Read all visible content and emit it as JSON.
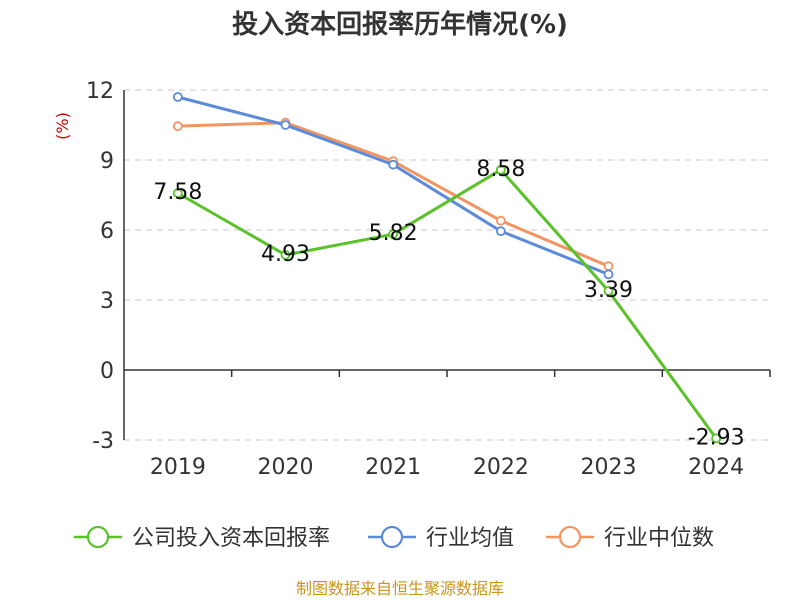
{
  "chart_data": {
    "type": "line",
    "title": "投入资本回报率历年情况(%)",
    "ylabel": "(%)",
    "categories": [
      "2019",
      "2020",
      "2021",
      "2022",
      "2023",
      "2024"
    ],
    "yticks": [
      12,
      9,
      6,
      3,
      0,
      -3
    ],
    "ylim": [
      -3,
      12
    ],
    "grid": true,
    "legend_position": "bottom",
    "series": [
      {
        "name": "公司投入资本回报率",
        "color": "#5ac129",
        "values": [
          7.58,
          4.93,
          5.82,
          8.58,
          3.39,
          -2.93
        ],
        "labels": [
          "7.58",
          "4.93",
          "5.82",
          "8.58",
          "3.39",
          "-2.93"
        ]
      },
      {
        "name": "行业均值",
        "color": "#5b8bd9",
        "values": [
          11.7,
          10.5,
          8.8,
          5.95,
          4.1,
          null
        ]
      },
      {
        "name": "行业中位数",
        "color": "#f39461",
        "values": [
          10.45,
          10.6,
          8.95,
          6.4,
          4.45,
          null
        ]
      }
    ],
    "source": "制图数据来自恒生聚源数据库"
  }
}
